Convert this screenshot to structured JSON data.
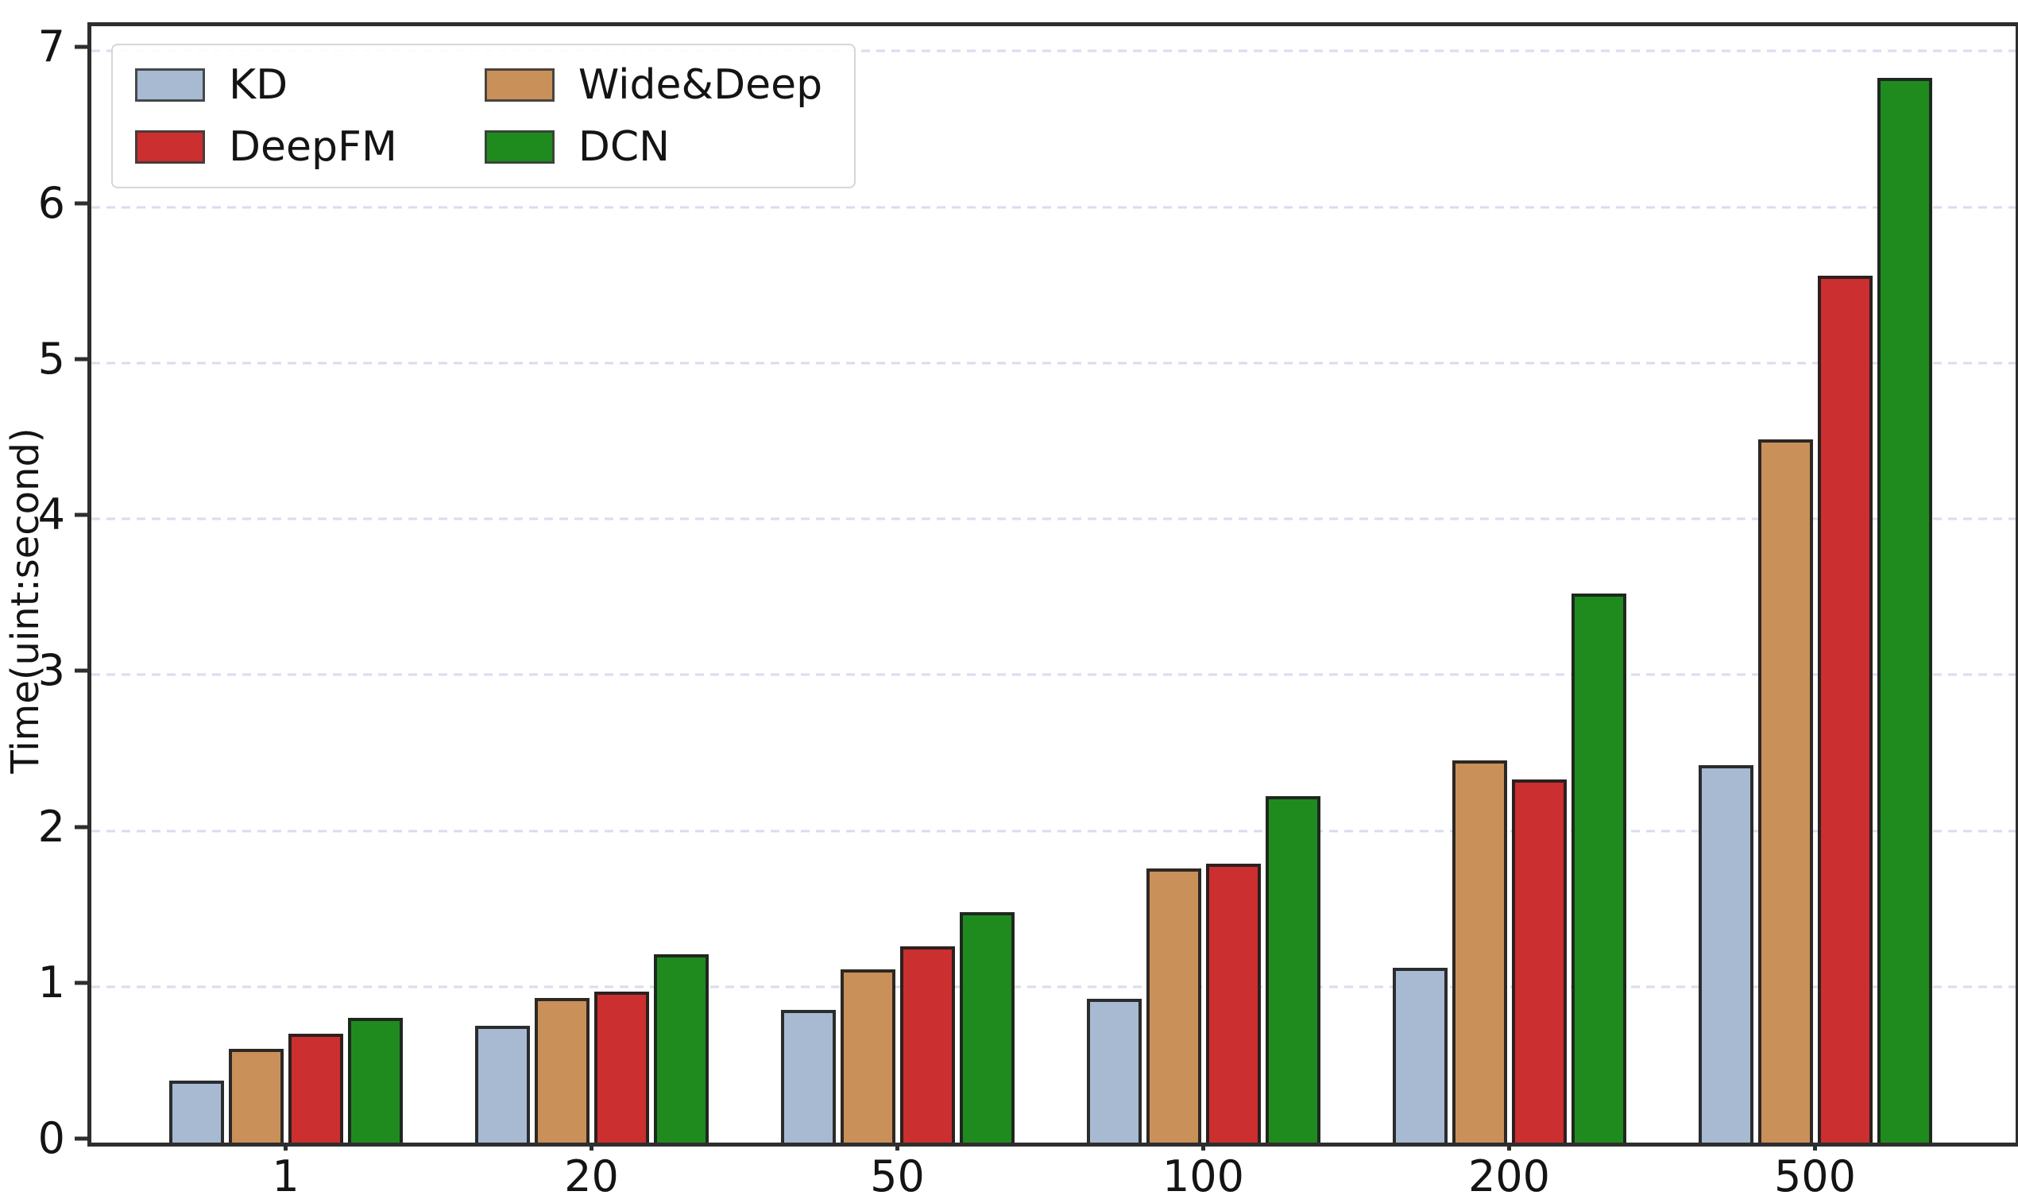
{
  "figure": {
    "background": "#ffffff",
    "spine_color": "#2e2e2e",
    "gridline_color": "#dbdbf0",
    "text_color": "#141414"
  },
  "chart_data": {
    "type": "bar",
    "title": "",
    "xlabel": "",
    "ylabel": "Time(uint:second)",
    "categories": [
      "1",
      "20",
      "50",
      "100",
      "200",
      "500"
    ],
    "series": [
      {
        "name": "KD",
        "color": "#a7bad2",
        "values": [
          0.4,
          0.75,
          0.85,
          0.92,
          1.12,
          2.42
        ]
      },
      {
        "name": "Wide&Deep",
        "color": "#c9905a",
        "values": [
          0.6,
          0.93,
          1.11,
          1.76,
          2.45,
          4.51
        ]
      },
      {
        "name": "DeepFM",
        "color": "#cb2f2f",
        "values": [
          0.7,
          0.97,
          1.26,
          1.79,
          2.33,
          5.56
        ]
      },
      {
        "name": "DCN",
        "color": "#1f8b1f",
        "values": [
          0.8,
          1.21,
          1.48,
          2.22,
          3.52,
          6.83
        ]
      }
    ],
    "yticks": [
      0,
      1,
      2,
      3,
      4,
      5,
      6,
      7
    ],
    "ylim": [
      0,
      7.16
    ],
    "grid": "horizontal-dashed",
    "legend_position": "upper-left",
    "legend_columns": 2,
    "legend_column_order": [
      [
        0,
        2
      ],
      [
        1,
        3
      ]
    ]
  }
}
